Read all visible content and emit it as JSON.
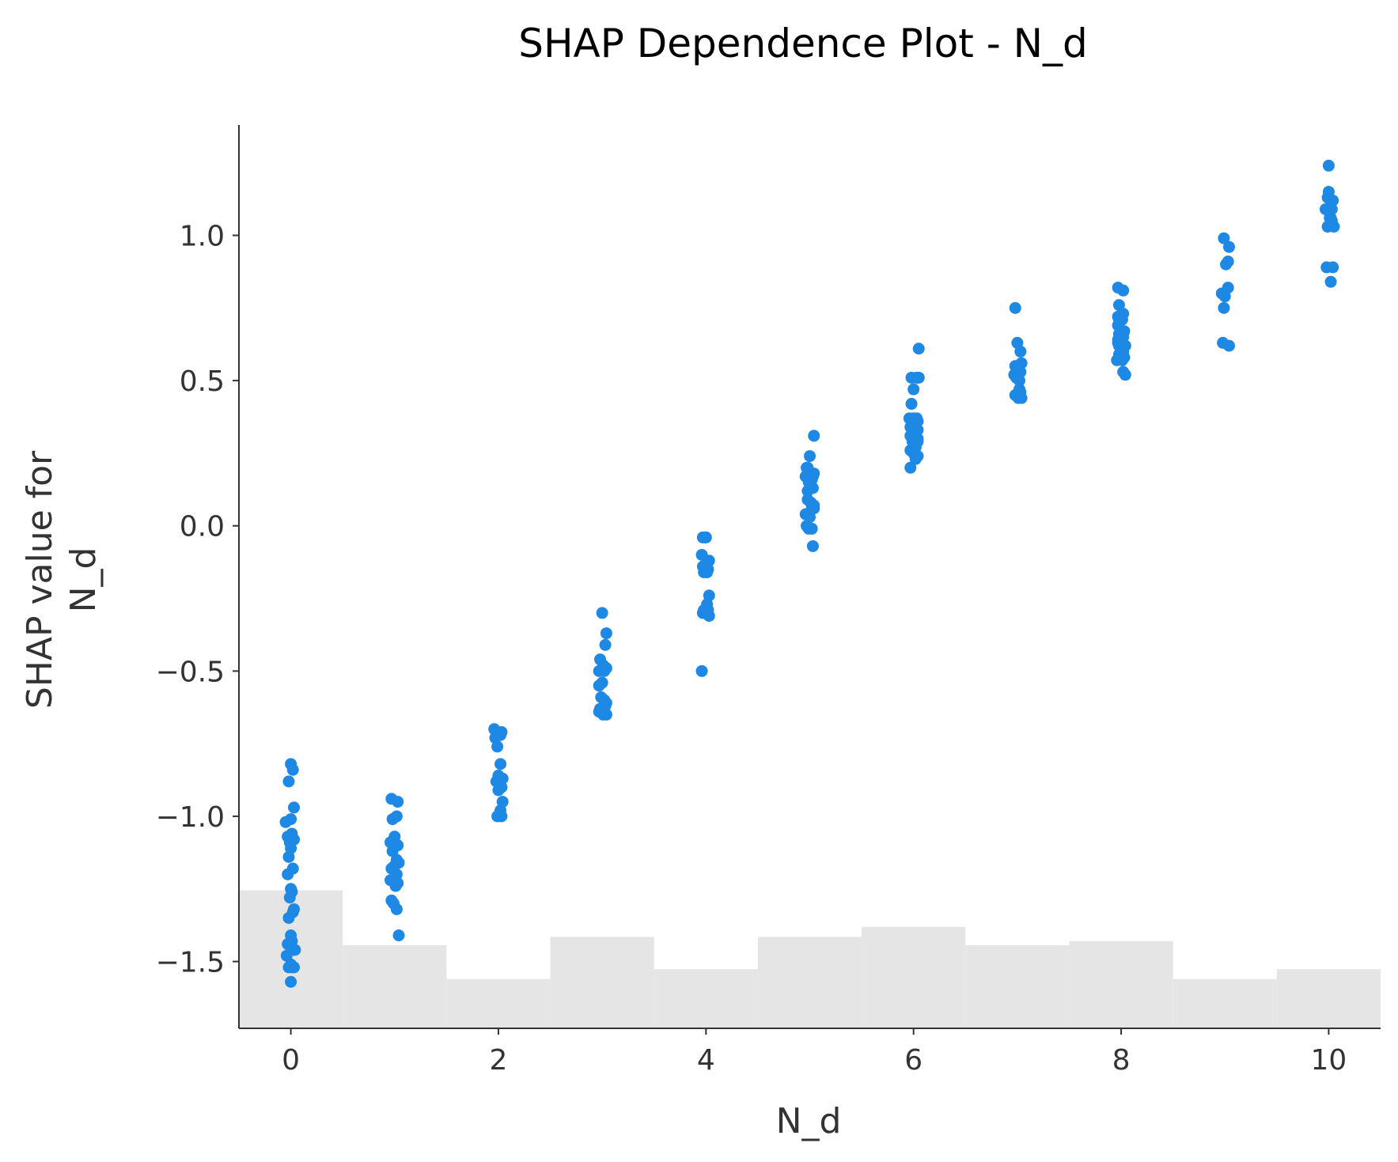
{
  "chart_data": {
    "type": "scatter",
    "title": "SHAP Dependence Plot - N_d",
    "xlabel": "N_d",
    "ylabel": [
      "SHAP value for",
      "N_d"
    ],
    "xlim": [
      -0.5,
      10.5
    ],
    "ylim": [
      -1.73,
      1.38
    ],
    "xticks": [
      0,
      2,
      4,
      6,
      8,
      10
    ],
    "xtick_labels": [
      "0",
      "2",
      "4",
      "6",
      "8",
      "10"
    ],
    "yticks": [
      1.0,
      0.5,
      0.0,
      -0.5,
      -1.0,
      -1.5
    ],
    "ytick_labels": [
      "1.0",
      "0.5",
      "0.0",
      "−0.5",
      "−1.0",
      "−1.5"
    ],
    "grid": false,
    "colors": {
      "points": "#1e88e5",
      "histogram": "#e5e5e5",
      "axes": "#333333"
    },
    "histogram": {
      "bins": [
        0,
        1,
        2,
        3,
        4,
        5,
        6,
        7,
        8,
        9,
        10
      ],
      "heights": [
        0.98,
        0.59,
        0.35,
        0.65,
        0.42,
        0.65,
        0.72,
        0.59,
        0.62,
        0.35,
        0.42
      ],
      "note_scale": "relative height"
    },
    "series": [
      {
        "x": [
          -0.05,
          0.02,
          0.0,
          -0.02,
          0.03,
          0.0,
          -0.03,
          0.01,
          -0.01,
          0.03,
          0.0,
          -0.02,
          0.02,
          -0.03,
          0.0,
          0.01,
          -0.01,
          0.03,
          0.02,
          -0.02,
          0.0,
          0.01,
          -0.03,
          0.02,
          0.04,
          -0.04,
          0.0,
          0.01,
          -0.02,
          0.03,
          0.0,
          -0.03,
          0.03,
          -0.02,
          0.02,
          0.0,
          -0.04,
          0.03,
          -0.02,
          0.02,
          0.0,
          -0.03,
          0.02,
          0.04,
          -0.04,
          0.01,
          0.03,
          -0.03,
          -0.01,
          0.02,
          0.04,
          0.03,
          -0.04,
          -0.03,
          0.02,
          -0.01,
          0.02,
          0.0,
          -0.02,
          0.04,
          0.03,
          0.0,
          0.04,
          0.02,
          0.03,
          -0.01,
          0.0,
          0.04,
          0.03,
          -0.02,
          0.01,
          0.04,
          -0.03,
          0.02,
          0.0,
          -0.03,
          -0.01,
          0.02,
          0.04,
          -0.02,
          0.03,
          -0.03,
          0.01,
          0.04,
          -0.03,
          -0.01,
          0.0,
          -0.04,
          0.03,
          -0.03,
          0.02,
          0.01,
          -0.02,
          0.03,
          0.01,
          -0.02,
          -0.03,
          0.02,
          0.03,
          -0.04,
          0.04,
          0.0,
          -0.02,
          0.04,
          0.03,
          -0.04,
          0.02,
          -0.01,
          0.0,
          0.03,
          -0.02,
          0.01,
          0.04,
          -0.04,
          0.02,
          0.0,
          -0.03,
          -0.01,
          0.02,
          0.03,
          0.03,
          -0.03,
          0.01,
          -0.02,
          0.04,
          0.05,
          0.03,
          -0.02,
          0.05,
          0.0,
          -0.02,
          0.03,
          -0.04,
          0.0,
          0.04,
          -0.03,
          0.04,
          0.0,
          -0.03,
          0.04,
          -0.01,
          -0.03,
          0.0,
          0.04,
          0.02,
          0.04,
          -0.03,
          0.03,
          0.02,
          -0.02,
          0.0,
          0.03,
          0.04,
          0.0,
          0.03,
          -0.03,
          -0.01,
          0.02,
          0.02,
          0.03,
          -0.02,
          -0.02,
          0.01,
          0.04,
          -0.03,
          0.02,
          -0.02,
          0.02,
          -0.03,
          0.01,
          -0.02,
          -0.03,
          0.03,
          -0.02,
          0.02,
          -0.03,
          -0.02,
          0.04,
          0.02,
          -0.02,
          0.0,
          -0.04,
          0.01,
          0.02,
          0.04,
          -0.02,
          -0.03,
          0.03,
          -0.01,
          0.04,
          0.03,
          0.01,
          0.03,
          -0.03,
          0.0,
          -0.01,
          -0.02,
          0.04,
          0.0,
          0.0,
          -0.01,
          0.04,
          0.02,
          0.03,
          -0.03,
          0.02,
          0.01,
          0.03,
          0.05,
          -0.01,
          -0.02,
          0.04,
          0.02
        ],
        "y": [
          -1.02,
          -0.84,
          -0.82,
          -0.88,
          -0.97,
          -1.01,
          -1.07,
          -1.06,
          -1.09,
          -1.08,
          -1.11,
          -1.14,
          -1.18,
          -1.2,
          -1.25,
          -1.26,
          -1.28,
          -1.32,
          -1.33,
          -1.35,
          -1.41,
          -1.43,
          -1.44,
          -1.46,
          -1.46,
          -1.48,
          -1.51,
          -1.52,
          -1.52,
          -1.52,
          -1.57,
          -0.94,
          -0.95,
          -1.01,
          -1.0,
          -1.07,
          -1.09,
          -1.1,
          -1.12,
          -1.15,
          -1.17,
          -1.18,
          -1.2,
          -1.16,
          -1.22,
          -1.24,
          -1.23,
          -1.29,
          -1.3,
          -1.32,
          -1.41,
          -0.71,
          -0.7,
          -0.73,
          -0.72,
          -0.76,
          -0.82,
          -0.86,
          -0.88,
          -0.87,
          -0.9,
          -0.91,
          -0.95,
          -0.98,
          -1.0,
          -1.0,
          -0.3,
          -0.37,
          -0.41,
          -0.46,
          -0.48,
          -0.49,
          -0.5,
          -0.5,
          -0.54,
          -0.55,
          -0.59,
          -0.6,
          -0.61,
          -0.63,
          -0.62,
          -0.64,
          -0.65,
          -0.65,
          -0.04,
          -0.04,
          -0.04,
          -0.1,
          -0.12,
          -0.14,
          -0.15,
          -0.16,
          -0.16,
          -0.24,
          -0.27,
          -0.29,
          -0.3,
          -0.29,
          -0.31,
          -0.5,
          0.31,
          0.24,
          0.2,
          0.18,
          0.17,
          0.17,
          0.16,
          0.15,
          0.13,
          0.13,
          0.09,
          0.08,
          0.07,
          0.04,
          0.06,
          0.03,
          0.0,
          -0.01,
          -0.01,
          -0.07,
          0.07,
          0.2,
          0.15,
          0.12,
          0.06,
          0.61,
          0.51,
          0.51,
          0.51,
          0.47,
          0.42,
          0.37,
          0.37,
          0.37,
          0.36,
          0.34,
          0.33,
          0.31,
          0.31,
          0.3,
          0.29,
          0.26,
          0.25,
          0.24,
          0.23,
          0.29,
          0.2,
          0.36,
          0.27,
          0.75,
          0.63,
          0.6,
          0.56,
          0.55,
          0.53,
          0.52,
          0.51,
          0.5,
          0.47,
          0.46,
          0.45,
          0.55,
          0.44,
          0.44,
          0.82,
          0.81,
          0.76,
          0.73,
          0.72,
          0.71,
          0.7,
          0.69,
          0.67,
          0.66,
          0.65,
          0.64,
          0.62,
          0.62,
          0.6,
          0.59,
          0.58,
          0.57,
          0.57,
          0.53,
          0.52,
          0.66,
          0.63,
          0.58,
          0.99,
          0.96,
          0.91,
          0.9,
          0.82,
          0.8,
          0.79,
          0.75,
          0.63,
          0.62,
          1.24,
          1.15,
          1.13,
          1.12,
          1.12,
          1.09,
          1.09,
          1.06,
          1.06,
          1.05,
          1.03,
          1.03,
          0.89,
          0.89,
          0.84
        ],
        "base_x": [
          0,
          0,
          0,
          0,
          0,
          0,
          0,
          0,
          0,
          0,
          0,
          0,
          0,
          0,
          0,
          0,
          0,
          0,
          0,
          0,
          0,
          0,
          0,
          0,
          0,
          0,
          0,
          0,
          0,
          0,
          0,
          1,
          1,
          1,
          1,
          1,
          1,
          1,
          1,
          1,
          1,
          1,
          1,
          1,
          1,
          1,
          1,
          1,
          1,
          1,
          1,
          2,
          2,
          2,
          2,
          2,
          2,
          2,
          2,
          2,
          2,
          2,
          2,
          2,
          2,
          2,
          3,
          3,
          3,
          3,
          3,
          3,
          3,
          3,
          3,
          3,
          3,
          3,
          3,
          3,
          3,
          3,
          3,
          3,
          4,
          4,
          4,
          4,
          4,
          4,
          4,
          4,
          4,
          4,
          4,
          4,
          4,
          4,
          4,
          4,
          5,
          5,
          5,
          5,
          5,
          5,
          5,
          5,
          5,
          5,
          5,
          5,
          5,
          5,
          5,
          5,
          5,
          5,
          5,
          5,
          5,
          5,
          5,
          5,
          5,
          6,
          6,
          6,
          6,
          6,
          6,
          6,
          6,
          6,
          6,
          6,
          6,
          6,
          6,
          6,
          6,
          6,
          6,
          6,
          6,
          6,
          6,
          6,
          6,
          7,
          7,
          7,
          7,
          7,
          7,
          7,
          7,
          7,
          7,
          7,
          7,
          7,
          7,
          7,
          8,
          8,
          8,
          8,
          8,
          8,
          8,
          8,
          8,
          8,
          8,
          8,
          8,
          8,
          8,
          8,
          8,
          8,
          8,
          8,
          8,
          8,
          8,
          8,
          9,
          9,
          9,
          9,
          9,
          9,
          9,
          9,
          9,
          9,
          10,
          10,
          10,
          10,
          10,
          10,
          10,
          10,
          10,
          10,
          10,
          10,
          10,
          10,
          10
        ]
      }
    ]
  }
}
